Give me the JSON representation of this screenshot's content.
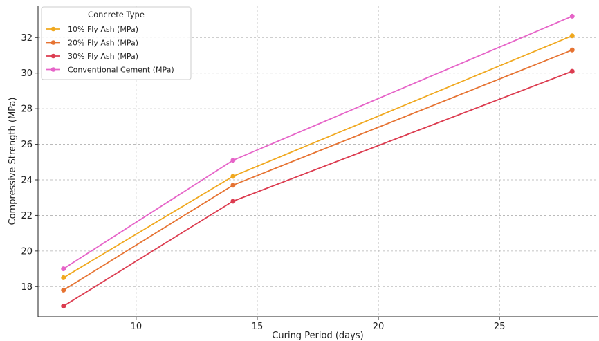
{
  "chart_data": {
    "type": "line",
    "title": "",
    "xlabel": "Curing Period (days)",
    "ylabel": "Compressive Strength (MPa)",
    "x": [
      7,
      14,
      28
    ],
    "xlim": [
      5.95,
      29.05
    ],
    "ylim": [
      16.3,
      33.8
    ],
    "xticks": [
      10,
      15,
      20,
      25
    ],
    "yticks": [
      18,
      20,
      22,
      24,
      26,
      28,
      30,
      32
    ],
    "grid": true,
    "legend": {
      "title": "Concrete Type",
      "placement": "top-left"
    },
    "series": [
      {
        "name": "10% Fly Ash (MPa)",
        "values": [
          18.5,
          24.2,
          32.1
        ],
        "color": "#f0a81e"
      },
      {
        "name": "20% Fly Ash (MPa)",
        "values": [
          17.8,
          23.7,
          31.3
        ],
        "color": "#e67332"
      },
      {
        "name": "30% Fly Ash (MPa)",
        "values": [
          16.9,
          22.8,
          30.1
        ],
        "color": "#dc3c50"
      },
      {
        "name": "Conventional Cement (MPa)",
        "values": [
          19.0,
          25.1,
          33.2
        ],
        "color": "#e664c8"
      }
    ]
  }
}
